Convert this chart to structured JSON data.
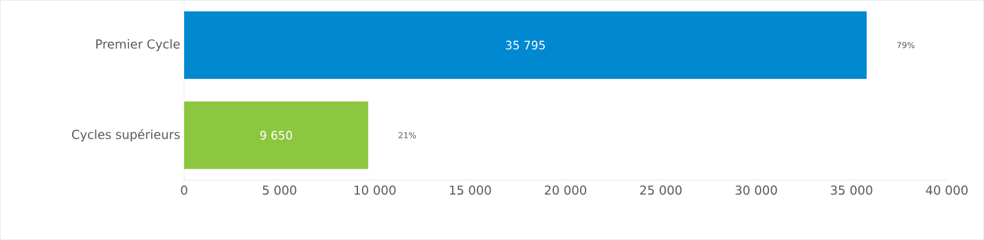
{
  "chart_data": {
    "type": "bar",
    "orientation": "horizontal",
    "categories": [
      "Premier Cycle",
      "Cycles supérieurs"
    ],
    "values": [
      35795,
      9650
    ],
    "colors": [
      "#0088d1",
      "#8dc63f"
    ],
    "value_labels": [
      "35 795",
      "9 650"
    ],
    "annotations": [
      "79%",
      "21%"
    ],
    "xlim": [
      0,
      40000
    ],
    "xticks": [
      0,
      {
        "value": 5000,
        "label": "5 000"
      },
      {
        "value": 10000,
        "label": "10 000"
      },
      {
        "value": 15000,
        "label": "15 000"
      },
      {
        "value": 20000,
        "label": "20 000"
      },
      {
        "value": 25000,
        "label": "25 000"
      },
      {
        "value": 30000,
        "label": "30 000"
      },
      {
        "value": 35000,
        "label": "35 000"
      },
      {
        "value": 40000,
        "label": "40 000"
      }
    ]
  }
}
